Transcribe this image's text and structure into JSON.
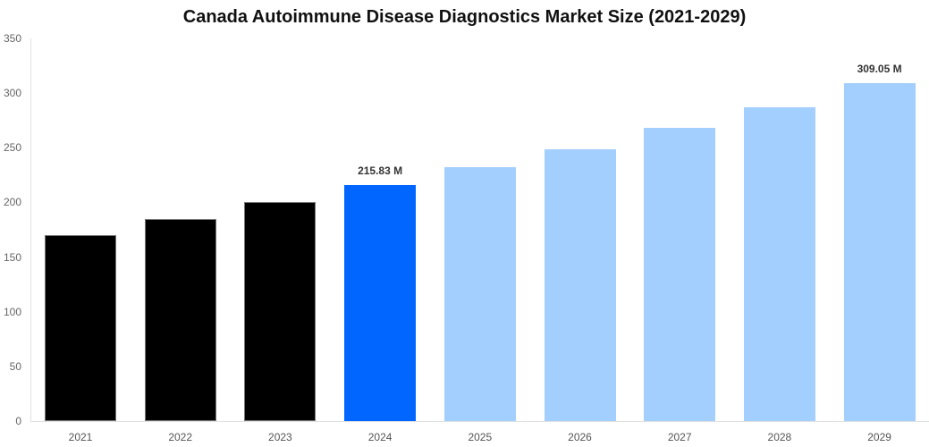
{
  "chart_data": {
    "type": "bar",
    "title": "Canada Autoimmune Disease Diagnostics Market Size (2021-2029)",
    "xlabel": "",
    "ylabel": "",
    "ylim": [
      0,
      350
    ],
    "yticks": [
      0,
      50,
      100,
      150,
      200,
      250,
      300,
      350
    ],
    "categories": [
      "2021",
      "2022",
      "2023",
      "2024",
      "2025",
      "2026",
      "2027",
      "2028",
      "2029"
    ],
    "values": [
      170,
      185,
      200,
      215.83,
      232,
      249,
      268,
      287,
      309.05
    ],
    "bar_kinds": [
      "historical",
      "historical",
      "historical",
      "current",
      "forecast",
      "forecast",
      "forecast",
      "forecast",
      "forecast"
    ],
    "annotations": [
      {
        "category": "2024",
        "label": "215.83 M"
      },
      {
        "category": "2029",
        "label": "309.05 M"
      }
    ],
    "colors": {
      "historical": "#000000",
      "current": "#0066ff",
      "forecast": "#a3cfff"
    },
    "grid": false,
    "legend": null
  }
}
